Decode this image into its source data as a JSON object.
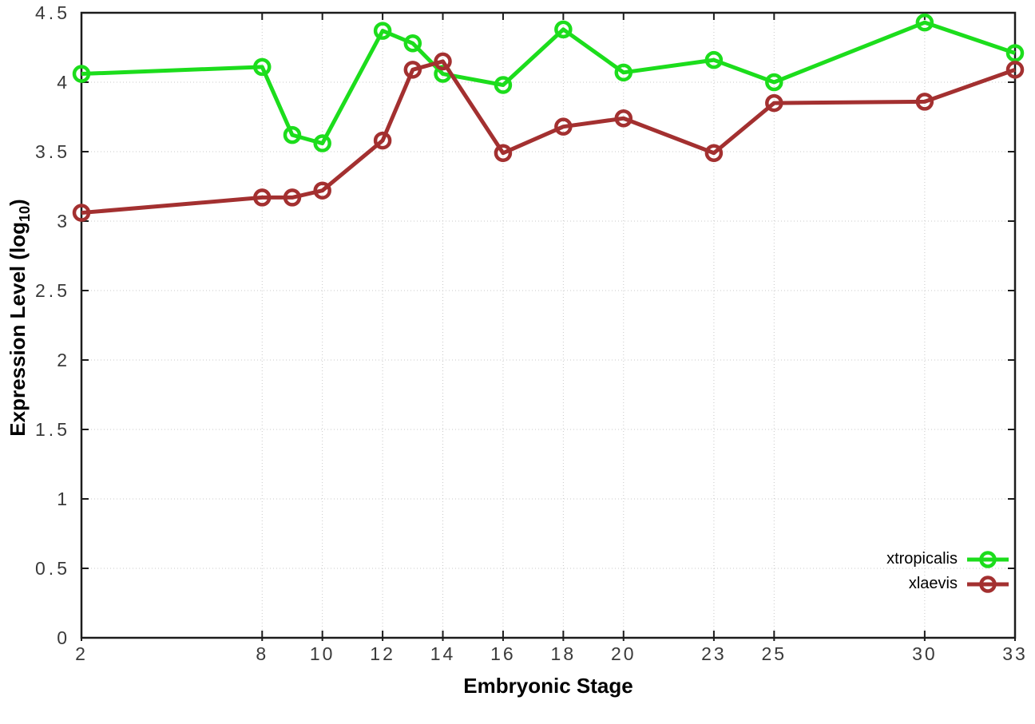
{
  "chart_data": {
    "type": "line",
    "xlabel": "Embryonic Stage",
    "ylabel": "Expression Level (log10)",
    "ylabel_parts": {
      "prefix": "Expression Level (log",
      "sub": "10",
      "suffix": ")"
    },
    "xlim": [
      2,
      33
    ],
    "ylim": [
      0,
      4.5
    ],
    "grid": true,
    "legend_position": "inside bottom-right",
    "x": [
      2,
      8,
      9,
      10,
      12,
      13,
      14,
      16,
      18,
      20,
      23,
      25,
      30,
      33
    ],
    "x_tick_labels": [
      "2",
      "8",
      "10",
      "12",
      "14",
      "16",
      "18",
      "20",
      "23",
      "25",
      "30",
      "33"
    ],
    "x_tick_values": [
      2,
      8,
      10,
      12,
      14,
      16,
      18,
      20,
      23,
      25,
      30,
      33
    ],
    "y_tick_labels": [
      "0",
      "0.5",
      "1",
      "1.5",
      "2",
      "2.5",
      "3",
      "3.5",
      "4",
      "4.5"
    ],
    "y_tick_values": [
      0,
      0.5,
      1,
      1.5,
      2,
      2.5,
      3,
      3.5,
      4,
      4.5
    ],
    "series": [
      {
        "name": "xtropicalis",
        "color": "#1cdd1c",
        "values": [
          4.06,
          4.11,
          3.62,
          3.56,
          4.37,
          4.28,
          4.06,
          3.98,
          4.38,
          4.07,
          4.16,
          4.0,
          4.43,
          4.21
        ]
      },
      {
        "name": "xlaevis",
        "color": "#a33030",
        "values": [
          3.06,
          3.17,
          3.17,
          3.22,
          3.58,
          4.09,
          4.15,
          3.49,
          3.68,
          3.74,
          3.49,
          3.85,
          3.86,
          4.09
        ]
      }
    ],
    "axis_color": "#1c1c1c",
    "grid_color": "#c8c8c8",
    "tick_label_color": "#3a3a3a"
  }
}
